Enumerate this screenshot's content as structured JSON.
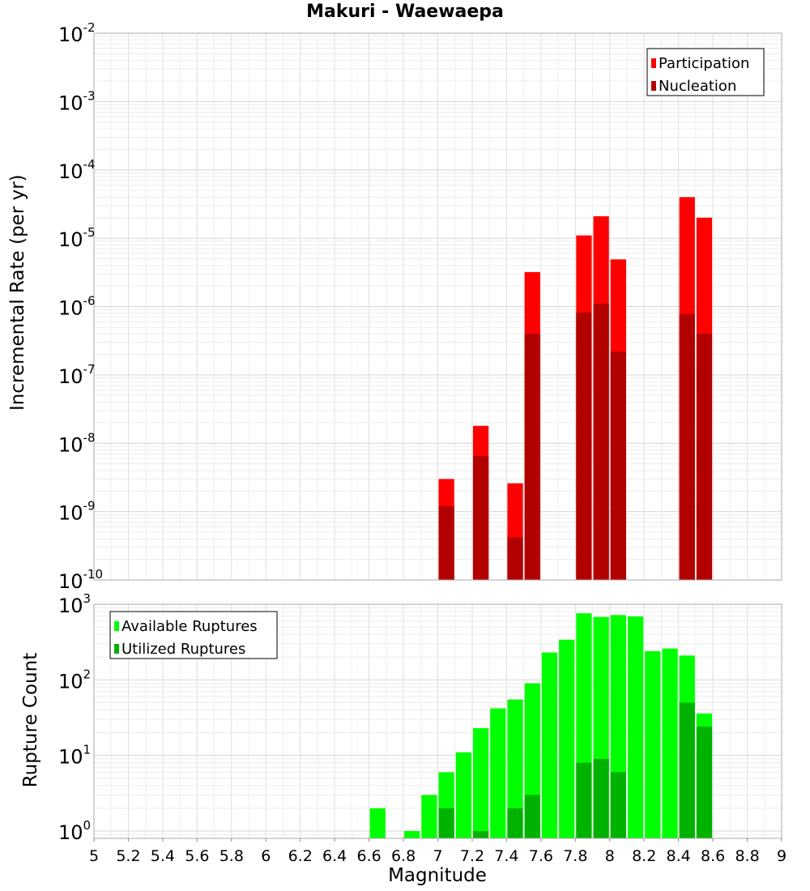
{
  "title": "Makuri - Waewaepa",
  "chart_data": [
    {
      "type": "bar",
      "ylabel": "Incremental Rate (per yr)",
      "yscale": "log",
      "ylim": [
        1e-10,
        0.01
      ],
      "xlim": [
        5,
        9
      ],
      "grid": true,
      "legend_position": "top-right",
      "bar_width": 0.1,
      "y_ticks": [
        {
          "base": "10",
          "exp": "-10",
          "value": 1e-10
        },
        {
          "base": "10",
          "exp": "-9",
          "value": 1e-09
        },
        {
          "base": "10",
          "exp": "-8",
          "value": 1e-08
        },
        {
          "base": "10",
          "exp": "-7",
          "value": 1e-07
        },
        {
          "base": "10",
          "exp": "-6",
          "value": 1e-06
        },
        {
          "base": "10",
          "exp": "-5",
          "value": 1e-05
        },
        {
          "base": "10",
          "exp": "-4",
          "value": 0.0001
        },
        {
          "base": "10",
          "exp": "-3",
          "value": 0.001
        },
        {
          "base": "10",
          "exp": "-2",
          "value": 0.01
        }
      ],
      "series": [
        {
          "name": "Participation",
          "color": "#ff0000",
          "x": [
            7.05,
            7.25,
            7.45,
            7.55,
            7.85,
            7.95,
            8.05,
            8.45,
            8.55
          ],
          "values": [
            3e-09,
            1.8e-08,
            2.6e-09,
            3.2e-06,
            1.1e-05,
            2.1e-05,
            4.9e-06,
            4e-05,
            2e-05
          ]
        },
        {
          "name": "Nucleation",
          "color": "#b20000",
          "x": [
            7.05,
            7.25,
            7.45,
            7.55,
            7.85,
            7.95,
            8.05,
            8.45,
            8.55
          ],
          "values": [
            1.2e-09,
            6.5e-09,
            4.2e-10,
            4e-07,
            8.2e-07,
            1.1e-06,
            2.2e-07,
            7.8e-07,
            4e-07
          ]
        }
      ]
    },
    {
      "type": "bar",
      "xlabel": "Magnitude",
      "ylabel": "Rupture Count",
      "yscale": "log",
      "ylim": [
        0.8,
        1000
      ],
      "xlim": [
        5,
        9
      ],
      "grid": true,
      "legend_position": "top-left",
      "bar_width": 0.1,
      "x_ticks": [
        "5",
        "5.2",
        "5.4",
        "5.6",
        "5.8",
        "6",
        "6.2",
        "6.4",
        "6.6",
        "6.8",
        "7",
        "7.2",
        "7.4",
        "7.6",
        "7.8",
        "8",
        "8.2",
        "8.4",
        "8.6",
        "8.8",
        "9"
      ],
      "y_ticks": [
        {
          "base": "10",
          "exp": "0",
          "value": 1
        },
        {
          "base": "10",
          "exp": "1",
          "value": 10
        },
        {
          "base": "10",
          "exp": "2",
          "value": 100
        },
        {
          "base": "10",
          "exp": "3",
          "value": 1000
        }
      ],
      "series": [
        {
          "name": "Available Ruptures",
          "color": "#00ff00",
          "x": [
            6.65,
            6.85,
            6.95,
            7.05,
            7.15,
            7.25,
            7.35,
            7.45,
            7.55,
            7.65,
            7.75,
            7.85,
            7.95,
            8.05,
            8.15,
            8.25,
            8.35,
            8.45,
            8.55
          ],
          "values": [
            2,
            1,
            3,
            6,
            11,
            23,
            42,
            55,
            90,
            230,
            340,
            760,
            680,
            720,
            690,
            240,
            260,
            210,
            36
          ]
        },
        {
          "name": "Utilized Ruptures",
          "color": "#00b200",
          "x": [
            7.05,
            7.25,
            7.45,
            7.55,
            7.85,
            7.95,
            8.05,
            8.45,
            8.55
          ],
          "values": [
            2,
            1,
            2,
            3,
            8,
            9,
            6,
            50,
            24
          ]
        }
      ]
    }
  ]
}
